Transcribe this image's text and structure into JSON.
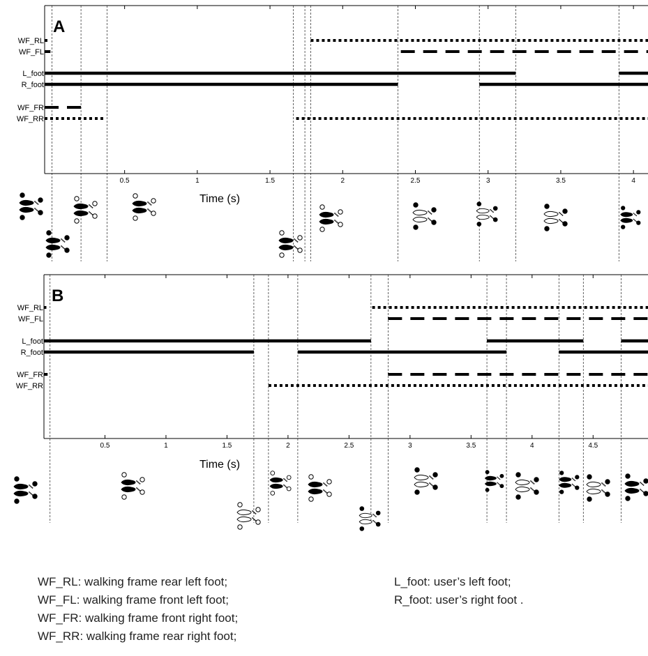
{
  "chart_data": [
    {
      "panel": "A",
      "type": "gait-timeline",
      "xlabel": "Time (s)",
      "xlim": [
        -0.05,
        4.1
      ],
      "xticks": [
        0.5,
        1,
        1.5,
        2,
        2.5,
        3,
        3.5,
        4
      ],
      "series_labels": [
        "WF_RL",
        "WF_FL",
        "L_foot",
        "R_foot",
        "WF_FR",
        "WF_RR"
      ],
      "series": [
        {
          "name": "WF_RL",
          "style": "dotted",
          "intervals": [
            [
              -0.05,
              -0.02
            ],
            [
              1.78,
              4.1
            ]
          ]
        },
        {
          "name": "WF_FL",
          "style": "dashed",
          "intervals": [
            [
              -0.05,
              -0.01
            ],
            [
              2.4,
              4.1
            ]
          ]
        },
        {
          "name": "L_foot",
          "style": "solid",
          "intervals": [
            [
              -0.05,
              3.19
            ],
            [
              3.9,
              4.1
            ]
          ]
        },
        {
          "name": "R_foot",
          "style": "solid",
          "intervals": [
            [
              -0.05,
              2.38
            ],
            [
              2.94,
              4.1
            ]
          ]
        },
        {
          "name": "WF_FR",
          "style": "dashed",
          "intervals": [
            [
              -0.05,
              0.2
            ]
          ]
        },
        {
          "name": "WF_RR",
          "style": "dotted",
          "intervals": [
            [
              -0.05,
              0.37
            ],
            [
              1.68,
              4.1
            ]
          ]
        }
      ],
      "event_lines": [
        0.0,
        0.2,
        0.38,
        1.66,
        1.74,
        1.78,
        2.38,
        2.94,
        3.19,
        3.9
      ]
    },
    {
      "panel": "B",
      "type": "gait-timeline",
      "xlabel": "Time (s)",
      "xlim": [
        0.0,
        4.95
      ],
      "xticks": [
        0.5,
        1,
        1.5,
        2,
        2.5,
        3,
        3.5,
        4,
        4.5
      ],
      "series_labels": [
        "WF_RL",
        "WF_FL",
        "L_foot",
        "R_foot",
        "WF_FR",
        "WF_RR"
      ],
      "series": [
        {
          "name": "WF_RL",
          "style": "dotted",
          "intervals": [
            [
              0.0,
              0.02
            ],
            [
              2.69,
              4.95
            ]
          ]
        },
        {
          "name": "WF_FL",
          "style": "dashed",
          "intervals": [
            [
              2.82,
              4.95
            ]
          ]
        },
        {
          "name": "L_foot",
          "style": "solid",
          "intervals": [
            [
              0.0,
              2.68
            ],
            [
              3.63,
              4.42
            ],
            [
              4.73,
              4.95
            ]
          ]
        },
        {
          "name": "R_foot",
          "style": "solid",
          "intervals": [
            [
              0.0,
              1.72
            ],
            [
              2.08,
              3.79
            ],
            [
              4.22,
              4.95
            ]
          ]
        },
        {
          "name": "WF_FR",
          "style": "dashed",
          "intervals": [
            [
              0.0,
              0.03
            ],
            [
              2.82,
              4.95
            ]
          ]
        },
        {
          "name": "WF_RR",
          "style": "dotted",
          "intervals": [
            [
              1.84,
              4.95
            ]
          ]
        }
      ],
      "event_lines": [
        0.05,
        1.72,
        1.84,
        2.08,
        2.68,
        2.82,
        3.63,
        3.79,
        4.22,
        4.42,
        4.73
      ]
    }
  ],
  "legend_left": [
    "WF_RL: walking frame rear left foot;",
    "WF_FL: walking frame front left foot;",
    "WF_FR: walking frame front right foot;",
    "WF_RR: walking frame rear right  foot;"
  ],
  "legend_right": [
    "L_foot: user’s left foot;",
    "R_foot: user’s right foot ."
  ]
}
